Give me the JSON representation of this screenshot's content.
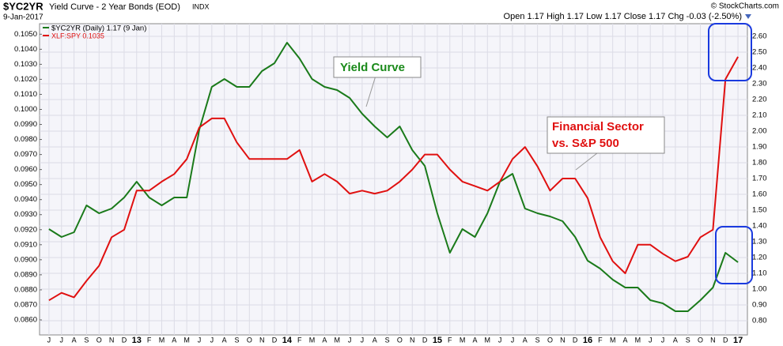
{
  "chart_data": {
    "type": "line",
    "title": "$YC2YR",
    "subtitle": "Yield Curve - 2 Year Bonds (EOD)",
    "exchange": "INDX",
    "date": "9-Jan-2017",
    "quote": "Open 1.17 High 1.17 Low 1.17 Close 1.17 Chg -0.03 (-2.50%)",
    "credit": "© StockCharts.com",
    "annotations": [
      "Yield Curve",
      "Financial Sector",
      "vs. S&P 500"
    ],
    "categories": [
      "J",
      "J",
      "A",
      "S",
      "O",
      "N",
      "D",
      "13",
      "F",
      "M",
      "A",
      "M",
      "J",
      "J",
      "A",
      "S",
      "O",
      "N",
      "D",
      "14",
      "F",
      "M",
      "A",
      "M",
      "J",
      "J",
      "A",
      "S",
      "O",
      "N",
      "D",
      "15",
      "F",
      "M",
      "A",
      "M",
      "J",
      "J",
      "A",
      "S",
      "O",
      "N",
      "D",
      "16",
      "F",
      "M",
      "A",
      "M",
      "J",
      "J",
      "A",
      "S",
      "O",
      "N",
      "D",
      "17"
    ],
    "series": [
      {
        "name": "$YC2YR (Daily) 1.17 (9 Jan)",
        "color": "#1a7a1a",
        "axis": "y2",
        "values": [
          1.38,
          1.33,
          1.36,
          1.53,
          1.48,
          1.51,
          1.58,
          1.68,
          1.58,
          1.53,
          1.58,
          1.58,
          2.01,
          2.28,
          2.33,
          2.28,
          2.28,
          2.38,
          2.43,
          2.56,
          2.46,
          2.33,
          2.28,
          2.26,
          2.21,
          2.11,
          2.03,
          1.96,
          2.03,
          1.88,
          1.78,
          1.48,
          1.23,
          1.38,
          1.33,
          1.48,
          1.68,
          1.73,
          1.51,
          1.48,
          1.46,
          1.43,
          1.33,
          1.18,
          1.13,
          1.06,
          1.01,
          1.01,
          0.93,
          0.91,
          0.86,
          0.86,
          0.93,
          1.01,
          1.23,
          1.17
        ]
      },
      {
        "name": "XLF:SPY 0.1035",
        "color": "#e01010",
        "values": [
          0.0873,
          0.0878,
          0.0875,
          0.0886,
          0.0896,
          0.0915,
          0.092,
          0.0946,
          0.0946,
          0.0952,
          0.0957,
          0.0967,
          0.0988,
          0.0994,
          0.0994,
          0.0978,
          0.0967,
          0.0967,
          0.0967,
          0.0967,
          0.0973,
          0.0952,
          0.0957,
          0.0952,
          0.0944,
          0.0946,
          0.0944,
          0.0946,
          0.0952,
          0.096,
          0.097,
          0.097,
          0.096,
          0.0952,
          0.0949,
          0.0946,
          0.0952,
          0.0967,
          0.0975,
          0.0962,
          0.0946,
          0.0954,
          0.0954,
          0.0941,
          0.0915,
          0.0899,
          0.0891,
          0.091,
          0.091,
          0.0904,
          0.0899,
          0.0902,
          0.0915,
          0.092,
          0.102,
          0.1035
        ]
      }
    ],
    "ylim": [
      0.085,
      0.1057
    ],
    "yticks": [
      {
        "value": 0.086,
        "label": "0.0860"
      },
      {
        "value": 0.087,
        "label": "0.0870"
      },
      {
        "value": 0.088,
        "label": "0.0880"
      },
      {
        "value": 0.089,
        "label": "0.0890"
      },
      {
        "value": 0.09,
        "label": "0.0900"
      },
      {
        "value": 0.091,
        "label": "0.0910"
      },
      {
        "value": 0.092,
        "label": "0.0920"
      },
      {
        "value": 0.093,
        "label": "0.0930"
      },
      {
        "value": 0.094,
        "label": "0.0940"
      },
      {
        "value": 0.095,
        "label": "0.0950"
      },
      {
        "value": 0.096,
        "label": "0.0960"
      },
      {
        "value": 0.097,
        "label": "0.0970"
      },
      {
        "value": 0.098,
        "label": "0.0980"
      },
      {
        "value": 0.099,
        "label": "0.0990"
      },
      {
        "value": 0.1,
        "label": "0.1000"
      },
      {
        "value": 0.101,
        "label": "0.1010"
      },
      {
        "value": 0.102,
        "label": "0.1020"
      },
      {
        "value": 0.103,
        "label": "0.1030"
      },
      {
        "value": 0.104,
        "label": "0.1040"
      },
      {
        "value": 0.105,
        "label": "0.1050"
      }
    ],
    "y2lim": [
      0.71,
      2.68
    ],
    "y2ticks": [
      {
        "value": 0.8,
        "label": "0.80"
      },
      {
        "value": 0.9,
        "label": "0.90"
      },
      {
        "value": 1.0,
        "label": "1.00"
      },
      {
        "value": 1.1,
        "label": "1.10"
      },
      {
        "value": 1.2,
        "label": "1.20"
      },
      {
        "value": 1.3,
        "label": "1.30"
      },
      {
        "value": 1.4,
        "label": "1.40"
      },
      {
        "value": 1.5,
        "label": "1.50"
      },
      {
        "value": 1.6,
        "label": "1.60"
      },
      {
        "value": 1.7,
        "label": "1.70"
      },
      {
        "value": 1.8,
        "label": "1.80"
      },
      {
        "value": 1.9,
        "label": "1.90"
      },
      {
        "value": 2.0,
        "label": "2.00"
      },
      {
        "value": 2.1,
        "label": "2.10"
      },
      {
        "value": 2.2,
        "label": "2.20"
      },
      {
        "value": 2.3,
        "label": "2.30"
      },
      {
        "value": 2.4,
        "label": "2.40"
      },
      {
        "value": 2.5,
        "label": "2.50"
      },
      {
        "value": 2.6,
        "label": "2.60"
      }
    ],
    "grid": true
  }
}
